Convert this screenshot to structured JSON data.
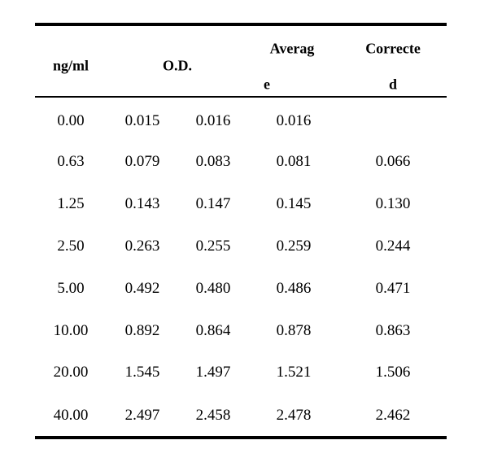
{
  "table": {
    "header": {
      "conc": "ng/ml",
      "od": "O.D.",
      "average": [
        "Averag",
        "e"
      ],
      "corrected": [
        "Correcte",
        "d"
      ]
    },
    "rows": [
      [
        "0.00",
        "0.015",
        "0.016",
        "0.016",
        null
      ],
      [
        "0.63",
        "0.079",
        "0.083",
        "0.081",
        "0.066"
      ],
      [
        "1.25",
        "0.143",
        "0.147",
        "0.145",
        "0.130"
      ],
      [
        "2.50",
        "0.263",
        "0.255",
        "0.259",
        "0.244"
      ],
      [
        "5.00",
        "0.492",
        "0.480",
        "0.486",
        "0.471"
      ],
      [
        "10.00",
        "0.892",
        "0.864",
        "0.878",
        "0.863"
      ],
      [
        "20.00",
        "1.545",
        "1.497",
        "1.521",
        "1.506"
      ],
      [
        "40.00",
        "2.497",
        "2.458",
        "2.478",
        "2.462"
      ]
    ]
  }
}
